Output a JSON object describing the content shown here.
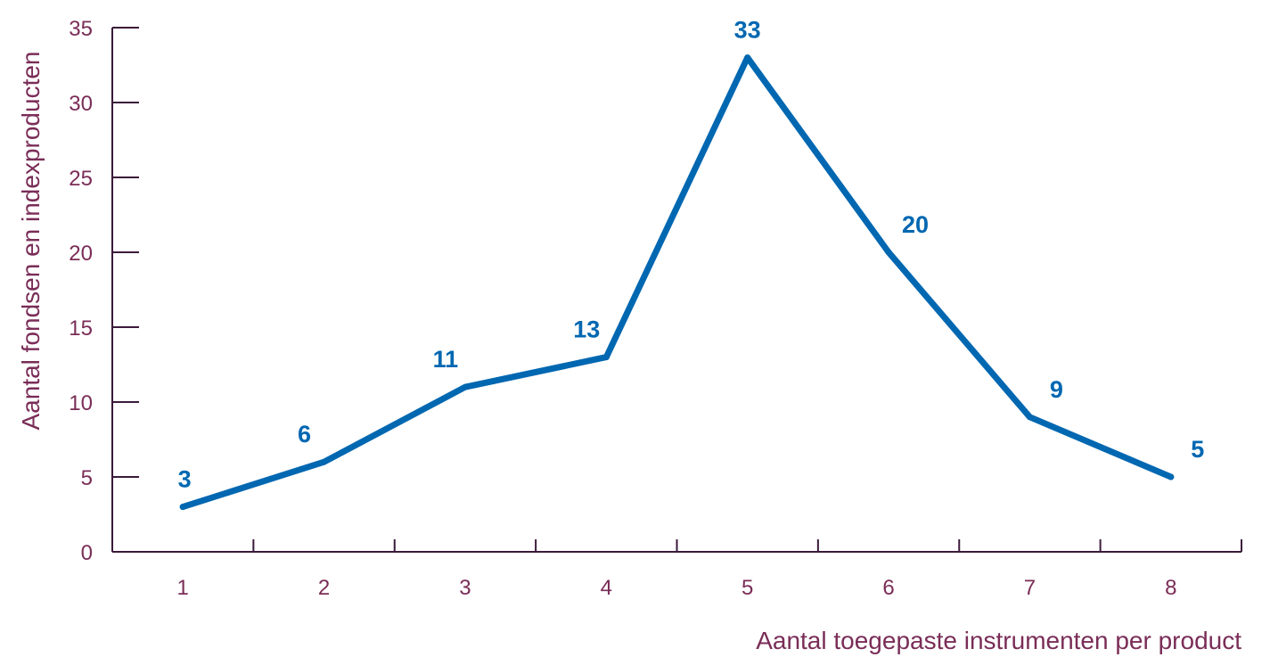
{
  "chart_data": {
    "type": "line",
    "title": "",
    "xlabel": "Aantal toegepaste instrumenten per product",
    "ylabel": "Aantal fondsen en indexproducten",
    "categories": [
      "1",
      "2",
      "3",
      "4",
      "5",
      "6",
      "7",
      "8"
    ],
    "series": [
      {
        "values": [
          3,
          6,
          11,
          13,
          33,
          20,
          9,
          5
        ],
        "color": "#0067b1"
      }
    ],
    "data_labels": [
      "3",
      "6",
      "11",
      "13",
      "33",
      "20",
      "9",
      "5"
    ],
    "yticks": [
      0,
      5,
      10,
      15,
      20,
      25,
      30,
      35
    ],
    "ytick_labels": [
      "0",
      "5",
      "10",
      "15",
      "20",
      "25",
      "30",
      "35"
    ],
    "ylim": [
      0,
      35
    ],
    "grid": false,
    "legend": "none",
    "colors": {
      "axis": "#3b1a3a",
      "text": "#7a2d57",
      "series": "#0067b1"
    }
  }
}
